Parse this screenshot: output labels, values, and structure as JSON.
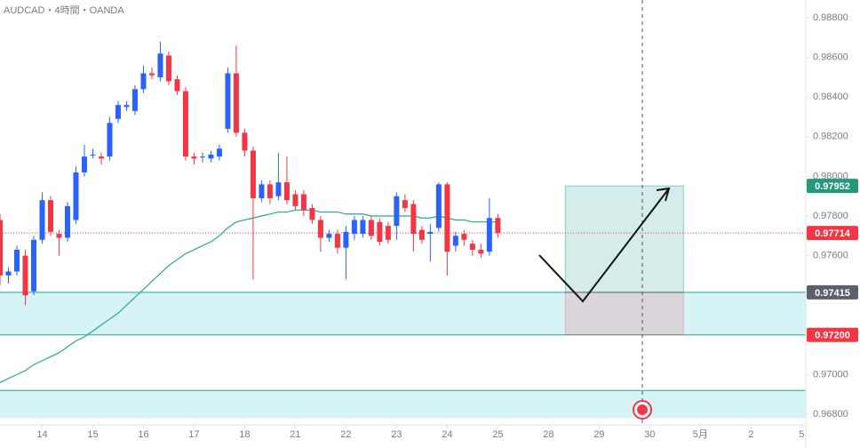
{
  "chart_data": {
    "type": "candlestick",
    "title": "AUDCAD・4時間・OANDA",
    "x": [
      0,
      1,
      2,
      3,
      4,
      5,
      6,
      7,
      8,
      9,
      10,
      11,
      12,
      13,
      14,
      15,
      16,
      17,
      18,
      19,
      20,
      21,
      22,
      23,
      24,
      25,
      26,
      27,
      28,
      29,
      30,
      31,
      32,
      33,
      34,
      35,
      36,
      37,
      38,
      39,
      40,
      41,
      42,
      43,
      44,
      45,
      46,
      47,
      48,
      49,
      50,
      51,
      52,
      53,
      54,
      55,
      56,
      57,
      58,
      59
    ],
    "open": [
      0.9778,
      0.975,
      0.9752,
      0.976,
      0.9742,
      0.9768,
      0.9788,
      0.9771,
      0.9769,
      0.9778,
      0.9802,
      0.9811,
      0.981,
      0.981,
      0.9829,
      0.9835,
      0.9833,
      0.9844,
      0.9852,
      0.985,
      0.9861,
      0.9849,
      0.9843,
      0.981,
      0.981,
      0.9809,
      0.981,
      0.9824,
      0.9852,
      0.9822,
      0.9813,
      0.9789,
      0.9796,
      0.979,
      0.9797,
      0.9791,
      0.9791,
      0.9784,
      0.9778,
      0.9769,
      0.9771,
      0.9764,
      0.9771,
      0.9771,
      0.9778,
      0.9777,
      0.9775,
      0.9775,
      0.9788,
      0.9786,
      0.9773,
      0.9771,
      0.9774,
      0.9796,
      0.9765,
      0.9771,
      0.9766,
      0.9763,
      0.9762,
      0.9779
    ],
    "high": [
      0.9781,
      0.9754,
      0.9765,
      0.9763,
      0.977,
      0.9792,
      0.979,
      0.9773,
      0.9787,
      0.9805,
      0.9816,
      0.9814,
      0.9812,
      0.983,
      0.9838,
      0.9838,
      0.9846,
      0.9856,
      0.9855,
      0.9868,
      0.9863,
      0.9851,
      0.9845,
      0.9812,
      0.9812,
      0.9813,
      0.9816,
      0.9855,
      0.9866,
      0.9824,
      0.9815,
      0.9798,
      0.9798,
      0.9812,
      0.981,
      0.9793,
      0.9793,
      0.9786,
      0.978,
      0.9773,
      0.9773,
      0.9775,
      0.978,
      0.978,
      0.978,
      0.9779,
      0.9777,
      0.9792,
      0.9791,
      0.9788,
      0.9775,
      0.9776,
      0.9797,
      0.9797,
      0.9772,
      0.9773,
      0.9768,
      0.9766,
      0.9789,
      0.9781
    ],
    "low": [
      0.9745,
      0.9746,
      0.975,
      0.9735,
      0.974,
      0.9766,
      0.977,
      0.976,
      0.9767,
      0.9776,
      0.98,
      0.9809,
      0.9806,
      0.9808,
      0.9827,
      0.9833,
      0.9831,
      0.9842,
      0.9849,
      0.9848,
      0.9846,
      0.9841,
      0.9808,
      0.9806,
      0.9807,
      0.9807,
      0.9808,
      0.9822,
      0.982,
      0.981,
      0.9748,
      0.9787,
      0.9786,
      0.9788,
      0.9786,
      0.9783,
      0.978,
      0.9776,
      0.9762,
      0.9767,
      0.9761,
      0.9748,
      0.9768,
      0.9769,
      0.9768,
      0.9765,
      0.9766,
      0.9768,
      0.9782,
      0.9762,
      0.9766,
      0.9757,
      0.9772,
      0.975,
      0.9762,
      0.9765,
      0.976,
      0.9759,
      0.976,
      0.9769
    ],
    "close": [
      0.975,
      0.9752,
      0.9763,
      0.974,
      0.9768,
      0.9788,
      0.9772,
      0.9769,
      0.9785,
      0.9802,
      0.981,
      0.9811,
      0.9809,
      0.9827,
      0.9836,
      0.9836,
      0.9844,
      0.9852,
      0.9851,
      0.9862,
      0.9848,
      0.9843,
      0.981,
      0.9809,
      0.981,
      0.9811,
      0.9814,
      0.9852,
      0.9822,
      0.9813,
      0.9789,
      0.9796,
      0.9789,
      0.9797,
      0.9788,
      0.9785,
      0.9783,
      0.9778,
      0.9769,
      0.9771,
      0.9764,
      0.9772,
      0.9778,
      0.9778,
      0.977,
      0.9767,
      0.9768,
      0.979,
      0.9784,
      0.9771,
      0.9768,
      0.9772,
      0.9796,
      0.9762,
      0.977,
      0.9768,
      0.9763,
      0.9761,
      0.9779,
      0.97714
    ],
    "up_color": "#2962ff",
    "down_color": "#f23645",
    "series": [
      {
        "color": "#26a69a",
        "values": [
          0.9696,
          0.9698,
          0.97,
          0.9702,
          0.9705,
          0.9707,
          0.9709,
          0.9711,
          0.9714,
          0.9717,
          0.9719,
          0.9722,
          0.9725,
          0.9728,
          0.9731,
          0.9735,
          0.9739,
          0.9743,
          0.9747,
          0.9751,
          0.9755,
          0.9758,
          0.9761,
          0.9763,
          0.9765,
          0.9767,
          0.977,
          0.9774,
          0.9777,
          0.9778,
          0.9779,
          0.978,
          0.9781,
          0.9782,
          0.9782,
          0.9783,
          0.9783,
          0.9783,
          0.9782,
          0.9782,
          0.9782,
          0.9781,
          0.9781,
          0.9781,
          0.978,
          0.978,
          0.978,
          0.978,
          0.978,
          0.978,
          0.9779,
          0.9779,
          0.978,
          0.9779,
          0.9778,
          0.9778,
          0.9777,
          0.9777,
          0.9777,
          0.9777
        ]
      }
    ],
    "xlim": [
      0,
      95.5
    ],
    "xticks": [
      {
        "value": 5,
        "label": "14"
      },
      {
        "value": 11,
        "label": "15"
      },
      {
        "value": 17,
        "label": "16"
      },
      {
        "value": 23,
        "label": "17"
      },
      {
        "value": 29,
        "label": "18"
      },
      {
        "value": 35,
        "label": "21"
      },
      {
        "value": 41,
        "label": "22"
      },
      {
        "value": 47,
        "label": "23"
      },
      {
        "value": 53,
        "label": "24"
      },
      {
        "value": 59,
        "label": "25"
      },
      {
        "value": 65,
        "label": "28"
      },
      {
        "value": 71,
        "label": "29"
      },
      {
        "value": 77,
        "label": "30"
      },
      {
        "value": 83,
        "label": "5月"
      },
      {
        "value": 89,
        "label": "2"
      },
      {
        "value": 95,
        "label": "5"
      }
    ],
    "ylim": [
      0.96746,
      0.9889
    ],
    "yticks": [
      {
        "value": 0.988,
        "label": "0.98800"
      },
      {
        "value": 0.986,
        "label": "0.98600"
      },
      {
        "value": 0.984,
        "label": "0.98400"
      },
      {
        "value": 0.982,
        "label": "0.98200"
      },
      {
        "value": 0.98,
        "label": "0.98000"
      },
      {
        "value": 0.978,
        "label": "0.97800"
      },
      {
        "value": 0.976,
        "label": "0.97600"
      },
      {
        "value": 0.974,
        "label": "0.97400"
      },
      {
        "value": 0.972,
        "label": "0.97200"
      },
      {
        "value": 0.97,
        "label": "0.97000"
      },
      {
        "value": 0.968,
        "label": "0.96800"
      }
    ],
    "zones": [
      {
        "from": 0.97415,
        "to": 0.972
      },
      {
        "from": 0.9692,
        "to": 0.9678
      }
    ],
    "position": {
      "x": [
        67,
        81
      ],
      "target": 0.97952,
      "entry": 0.97415,
      "stop": 0.972
    },
    "levels": [
      {
        "value": 0.97952,
        "label": "0.97952",
        "color": "#22997a"
      },
      {
        "value": 0.97714,
        "label": "0.97714",
        "color": "#f23645"
      },
      {
        "value": 0.97415,
        "label": "0.97415",
        "color": "#5d606b"
      },
      {
        "value": 0.972,
        "label": "0.97200",
        "color": "#f23645"
      }
    ]
  }
}
